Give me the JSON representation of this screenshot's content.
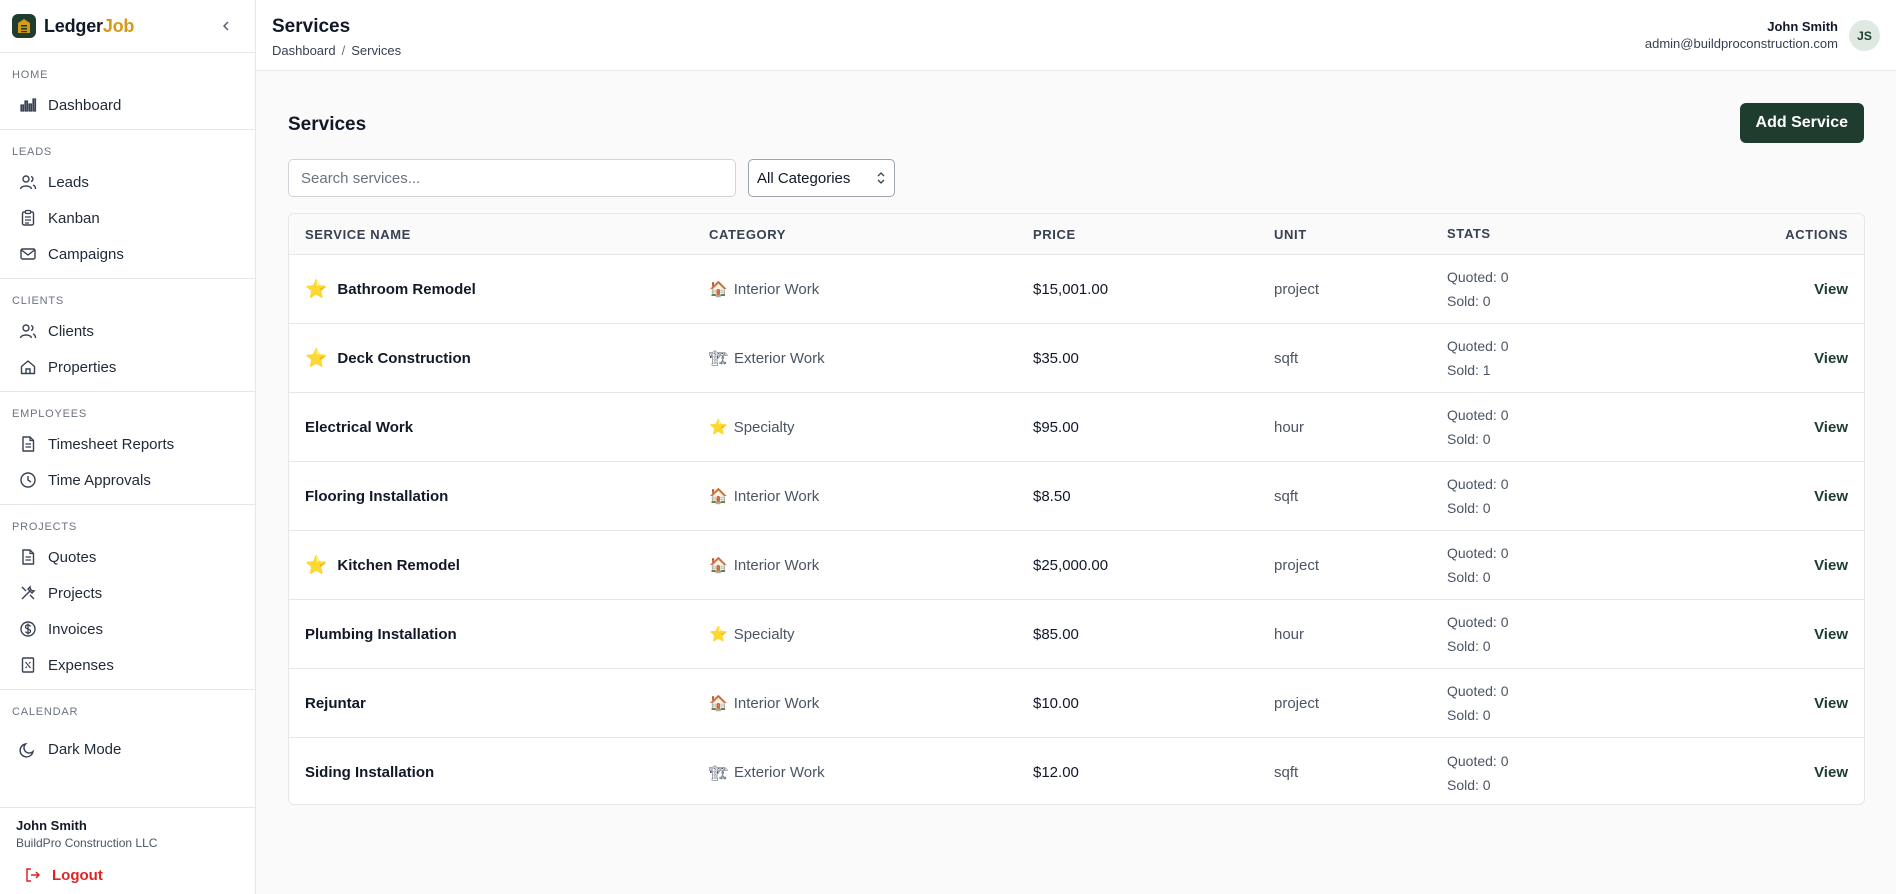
{
  "brand": {
    "name_part1": "Ledger",
    "name_part2": "Job"
  },
  "sidebar": {
    "sections": [
      {
        "heading": "HOME",
        "items": [
          {
            "label": "Dashboard",
            "icon": "bar-chart-icon"
          }
        ]
      },
      {
        "heading": "LEADS",
        "items": [
          {
            "label": "Leads",
            "icon": "users-icon"
          },
          {
            "label": "Kanban",
            "icon": "clipboard-icon"
          },
          {
            "label": "Campaigns",
            "icon": "mail-icon"
          }
        ]
      },
      {
        "heading": "CLIENTS",
        "items": [
          {
            "label": "Clients",
            "icon": "users-icon"
          },
          {
            "label": "Properties",
            "icon": "home-icon"
          }
        ]
      },
      {
        "heading": "EMPLOYEES",
        "items": [
          {
            "label": "Timesheet Reports",
            "icon": "file-icon"
          },
          {
            "label": "Time Approvals",
            "icon": "clock-icon"
          }
        ]
      },
      {
        "heading": "PROJECTS",
        "items": [
          {
            "label": "Quotes",
            "icon": "file-icon"
          },
          {
            "label": "Projects",
            "icon": "tools-icon"
          },
          {
            "label": "Invoices",
            "icon": "dollar-icon"
          },
          {
            "label": "Expenses",
            "icon": "receipt-icon"
          }
        ]
      },
      {
        "heading": "CALENDAR",
        "items": []
      }
    ],
    "dark_mode_label": "Dark Mode",
    "user_name": "John Smith",
    "user_company": "BuildPro Construction LLC",
    "logout_label": "Logout"
  },
  "header": {
    "title": "Services",
    "breadcrumb": [
      "Dashboard",
      "Services"
    ],
    "breadcrumb_sep": "/",
    "user_name": "John Smith",
    "user_email": "admin@buildproconstruction.com",
    "avatar_initials": "JS"
  },
  "main": {
    "title": "Services",
    "add_button": "Add Service",
    "search_placeholder": "Search services...",
    "category_filter": "All Categories",
    "columns": [
      "SERVICE NAME",
      "CATEGORY",
      "PRICE",
      "UNIT",
      "STATS",
      "ACTIONS"
    ],
    "rows": [
      {
        "name": "Bathroom Remodel",
        "featured": true,
        "category": "Interior Work",
        "cat_emoji": "🏠",
        "price": "$15,001.00",
        "unit": "project",
        "quoted": "Quoted: 0",
        "sold": "Sold: 0",
        "action": "View"
      },
      {
        "name": "Deck Construction",
        "featured": true,
        "category": "Exterior Work",
        "cat_emoji": "🏗",
        "price": "$35.00",
        "unit": "sqft",
        "quoted": "Quoted: 0",
        "sold": "Sold: 1",
        "action": "View"
      },
      {
        "name": "Electrical Work",
        "featured": false,
        "category": "Specialty",
        "cat_emoji": "⭐",
        "price": "$95.00",
        "unit": "hour",
        "quoted": "Quoted: 0",
        "sold": "Sold: 0",
        "action": "View"
      },
      {
        "name": "Flooring Installation",
        "featured": false,
        "category": "Interior Work",
        "cat_emoji": "🏠",
        "price": "$8.50",
        "unit": "sqft",
        "quoted": "Quoted: 0",
        "sold": "Sold: 0",
        "action": "View"
      },
      {
        "name": "Kitchen Remodel",
        "featured": true,
        "category": "Interior Work",
        "cat_emoji": "🏠",
        "price": "$25,000.00",
        "unit": "project",
        "quoted": "Quoted: 0",
        "sold": "Sold: 0",
        "action": "View"
      },
      {
        "name": "Plumbing Installation",
        "featured": false,
        "category": "Specialty",
        "cat_emoji": "⭐",
        "price": "$85.00",
        "unit": "hour",
        "quoted": "Quoted: 0",
        "sold": "Sold: 0",
        "action": "View"
      },
      {
        "name": "Rejuntar",
        "featured": false,
        "category": "Interior Work",
        "cat_emoji": "🏠",
        "price": "$10.00",
        "unit": "project",
        "quoted": "Quoted: 0",
        "sold": "Sold: 0",
        "action": "View"
      },
      {
        "name": "Siding Installation",
        "featured": false,
        "category": "Exterior Work",
        "cat_emoji": "🏗",
        "price": "$12.00",
        "unit": "sqft",
        "quoted": "Quoted: 0",
        "sold": "Sold: 0",
        "action": "View"
      }
    ]
  },
  "colors": {
    "brand_green": "#1e3d2f",
    "brand_gold": "#d59a17",
    "danger": "#dc2626",
    "star": "#f5b301"
  }
}
